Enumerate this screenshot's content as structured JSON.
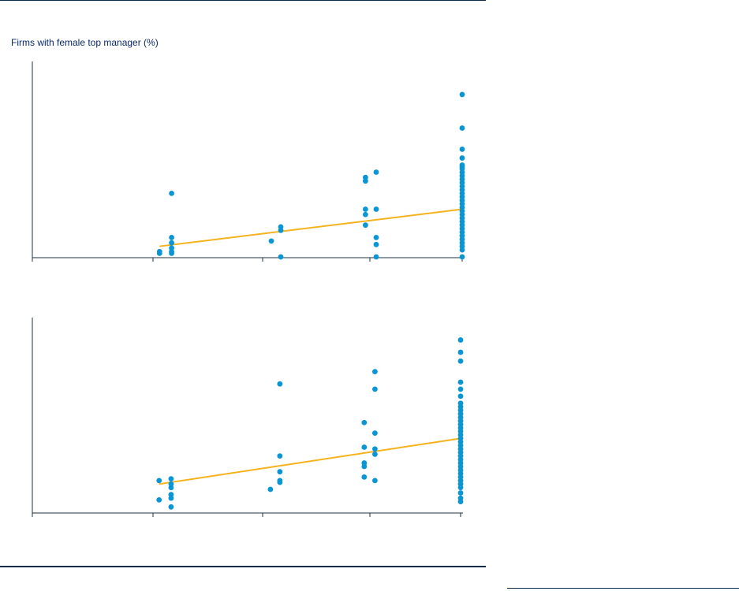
{
  "ylabel": "Firms with female top manager (%)",
  "colors": {
    "points": "#0a95d5",
    "trend": "#f5b21c",
    "axis": "#1f2f3f",
    "rule": "#0b2a4a"
  },
  "chart_data": [
    {
      "type": "scatter",
      "ylabel": "Firms with female top manager (%)",
      "grid": false,
      "xlim": [
        0,
        100
      ],
      "ylim": [
        0,
        100
      ],
      "points": [
        [
          29.6,
          3
        ],
        [
          29.6,
          2
        ],
        [
          32.4,
          8
        ],
        [
          32.4,
          5
        ],
        [
          32.4,
          3
        ],
        [
          32.4,
          2
        ],
        [
          32.4,
          11
        ],
        [
          32.4,
          36
        ],
        [
          55.6,
          9
        ],
        [
          57.8,
          17
        ],
        [
          57.8,
          15
        ],
        [
          57.8,
          0
        ],
        [
          77.5,
          45
        ],
        [
          77.5,
          43
        ],
        [
          77.5,
          27
        ],
        [
          77.5,
          24
        ],
        [
          77.5,
          18
        ],
        [
          80.0,
          48
        ],
        [
          80.0,
          27
        ],
        [
          80.0,
          11
        ],
        [
          80.0,
          7
        ],
        [
          80.0,
          0
        ],
        [
          100,
          92
        ],
        [
          100,
          73
        ],
        [
          100,
          61
        ],
        [
          100,
          56
        ],
        [
          100,
          52
        ],
        [
          100,
          51
        ],
        [
          100,
          50
        ],
        [
          100,
          48
        ],
        [
          100,
          46
        ],
        [
          100,
          44
        ],
        [
          100,
          42
        ],
        [
          100,
          40
        ],
        [
          100,
          38
        ],
        [
          100,
          36
        ],
        [
          100,
          34
        ],
        [
          100,
          32
        ],
        [
          100,
          30
        ],
        [
          100,
          28
        ],
        [
          100,
          26
        ],
        [
          100,
          24
        ],
        [
          100,
          22
        ],
        [
          100,
          20
        ],
        [
          100,
          18
        ],
        [
          100,
          16
        ],
        [
          100,
          14
        ],
        [
          100,
          12
        ],
        [
          100,
          10
        ],
        [
          100,
          8
        ],
        [
          100,
          6
        ],
        [
          100,
          4
        ],
        [
          100,
          0
        ]
      ],
      "trendline": [
        [
          29.6,
          6
        ],
        [
          100,
          27
        ]
      ]
    },
    {
      "type": "scatter",
      "grid": false,
      "xlim": [
        0,
        100
      ],
      "ylim": [
        0,
        100
      ],
      "points": [
        [
          29.6,
          18
        ],
        [
          29.6,
          7
        ],
        [
          32.4,
          19
        ],
        [
          32.4,
          16
        ],
        [
          32.4,
          14
        ],
        [
          32.4,
          10
        ],
        [
          32.4,
          8
        ],
        [
          32.4,
          3
        ],
        [
          55.6,
          13
        ],
        [
          57.8,
          73
        ],
        [
          57.8,
          32
        ],
        [
          57.8,
          23
        ],
        [
          57.8,
          18
        ],
        [
          57.8,
          17
        ],
        [
          77.5,
          51
        ],
        [
          77.5,
          37
        ],
        [
          77.5,
          28
        ],
        [
          77.5,
          26
        ],
        [
          77.5,
          20
        ],
        [
          80.0,
          80
        ],
        [
          80.0,
          70
        ],
        [
          80.0,
          45
        ],
        [
          80.0,
          36
        ],
        [
          80.0,
          33
        ],
        [
          80.0,
          18
        ],
        [
          100,
          98
        ],
        [
          100,
          91
        ],
        [
          100,
          86
        ],
        [
          100,
          74
        ],
        [
          100,
          70
        ],
        [
          100,
          66
        ],
        [
          100,
          62
        ],
        [
          100,
          60
        ],
        [
          100,
          58
        ],
        [
          100,
          56
        ],
        [
          100,
          54
        ],
        [
          100,
          52
        ],
        [
          100,
          50
        ],
        [
          100,
          48
        ],
        [
          100,
          46
        ],
        [
          100,
          44
        ],
        [
          100,
          42
        ],
        [
          100,
          40
        ],
        [
          100,
          38
        ],
        [
          100,
          36
        ],
        [
          100,
          34
        ],
        [
          100,
          32
        ],
        [
          100,
          30
        ],
        [
          100,
          28
        ],
        [
          100,
          26
        ],
        [
          100,
          24
        ],
        [
          100,
          22
        ],
        [
          100,
          20
        ],
        [
          100,
          18
        ],
        [
          100,
          16
        ],
        [
          100,
          14
        ],
        [
          100,
          11
        ],
        [
          100,
          8
        ],
        [
          100,
          6
        ]
      ],
      "trendline": [
        [
          29.6,
          16
        ],
        [
          100,
          42
        ]
      ]
    }
  ]
}
